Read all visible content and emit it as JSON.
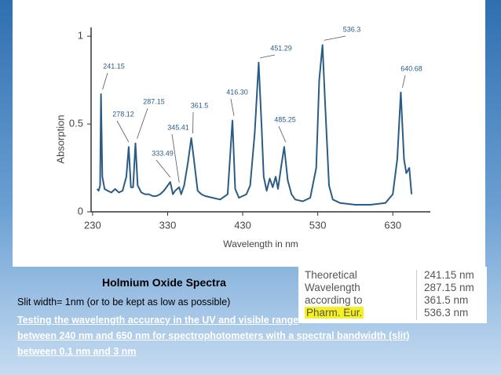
{
  "chart_data": {
    "type": "line",
    "x_label": "Wavelength in nm",
    "y_label": "Absorption",
    "xlim": [
      228,
      680
    ],
    "ylim": [
      0,
      1.05
    ],
    "xticks": [
      230,
      330,
      430,
      530,
      630
    ],
    "yticks": [
      0,
      0.5,
      1
    ],
    "series": [
      {
        "color": "#2b5c86",
        "x": [
          236,
          238,
          240,
          241.15,
          243,
          246,
          250,
          255,
          260,
          265,
          270,
          275,
          278.12,
          281,
          284,
          287.15,
          290,
          295,
          300,
          305,
          310,
          315,
          320,
          325,
          333.49,
          337,
          340,
          345.41,
          348,
          352,
          357,
          361.5,
          365,
          370,
          375,
          380,
          390,
          400,
          410,
          416.3,
          420,
          425,
          430,
          435,
          440,
          446,
          451.29,
          455,
          458,
          462,
          466,
          470,
          474,
          477,
          481,
          485.25,
          490,
          495,
          500,
          510,
          520,
          528,
          532,
          536.3,
          540,
          545,
          550,
          560,
          580,
          600,
          620,
          630,
          636,
          640.68,
          645,
          648,
          652,
          655
        ],
        "values": [
          0.13,
          0.12,
          0.15,
          0.67,
          0.2,
          0.13,
          0.12,
          0.11,
          0.13,
          0.11,
          0.12,
          0.2,
          0.37,
          0.14,
          0.14,
          0.39,
          0.15,
          0.11,
          0.1,
          0.1,
          0.09,
          0.09,
          0.1,
          0.12,
          0.17,
          0.1,
          0.12,
          0.14,
          0.1,
          0.15,
          0.28,
          0.42,
          0.3,
          0.12,
          0.1,
          0.09,
          0.08,
          0.07,
          0.1,
          0.52,
          0.13,
          0.08,
          0.09,
          0.1,
          0.15,
          0.45,
          0.85,
          0.5,
          0.2,
          0.12,
          0.19,
          0.14,
          0.2,
          0.13,
          0.25,
          0.37,
          0.18,
          0.1,
          0.07,
          0.06,
          0.08,
          0.25,
          0.75,
          0.95,
          0.6,
          0.15,
          0.07,
          0.05,
          0.04,
          0.04,
          0.05,
          0.1,
          0.3,
          0.68,
          0.3,
          0.22,
          0.25,
          0.1
        ]
      }
    ],
    "annotations": [
      {
        "label": "241.15",
        "x": 241.15,
        "y": 0.67
      },
      {
        "label": "278.12",
        "x": 278.12,
        "y": 0.37
      },
      {
        "label": "287.15",
        "x": 287.15,
        "y": 0.39
      },
      {
        "label": "333.49",
        "x": 333.49,
        "y": 0.17
      },
      {
        "label": "345.41",
        "x": 345.41,
        "y": 0.14
      },
      {
        "label": "361.5",
        "x": 361.5,
        "y": 0.42
      },
      {
        "label": "416.30",
        "x": 416.3,
        "y": 0.52
      },
      {
        "label": "451.29",
        "x": 451.29,
        "y": 0.85
      },
      {
        "label": "485.25",
        "x": 485.25,
        "y": 0.37
      },
      {
        "label": "536.3",
        "x": 536.3,
        "y": 0.95
      },
      {
        "label": "640.68",
        "x": 640.68,
        "y": 0.68
      }
    ]
  },
  "slide": {
    "title": "Holmium Oxide  Spectra",
    "lines": [
      "Slit width= 1nm (or to be kept as low as possible)",
      "Testing the wavelength accuracy in the UV and visible range",
      "between 240 nm and 650 nm for spectrophotometers with a spectral bandwidth (slit)",
      "between 0.1 nm and 3 nm"
    ]
  },
  "table": {
    "left": [
      "Theoretical",
      "Wavelength",
      "according to",
      "Pharm. Eur."
    ],
    "right": [
      "241.15 nm",
      "287.15 nm",
      "361.5 nm",
      "536.3 nm"
    ]
  }
}
